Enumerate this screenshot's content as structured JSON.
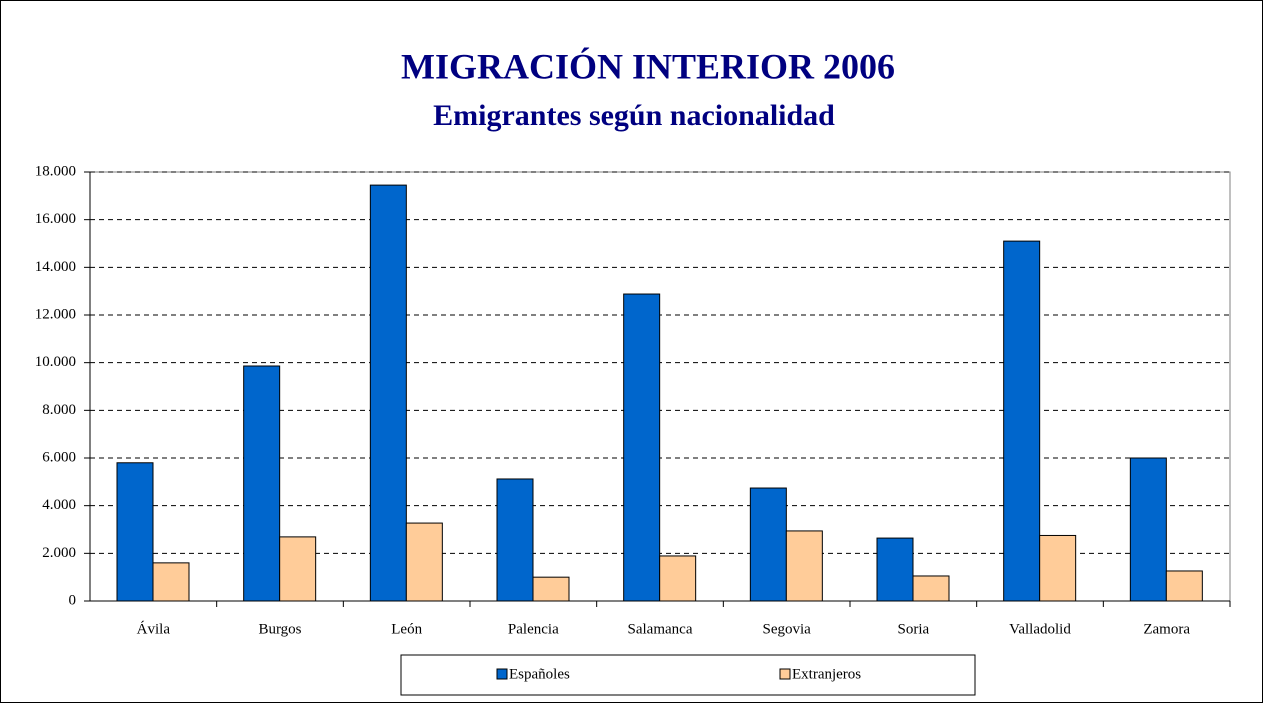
{
  "chart_data": {
    "type": "bar",
    "title": "MIGRACIÓN INTERIOR 2006",
    "subtitle": "Emigrantes según nacionalidad",
    "categories": [
      "Ávila",
      "Burgos",
      "León",
      "Palencia",
      "Salamanca",
      "Segovia",
      "Soria",
      "Valladolid",
      "Zamora"
    ],
    "series": [
      {
        "name": "Españoles",
        "color": "#0066cc",
        "values": [
          5800,
          9860,
          17450,
          5120,
          12880,
          4740,
          2640,
          15100,
          6000
        ]
      },
      {
        "name": "Extranjeros",
        "color": "#ffcc99",
        "values": [
          1600,
          2690,
          3270,
          1000,
          1890,
          2940,
          1050,
          2750,
          1260
        ]
      }
    ],
    "ylim": [
      0,
      18000
    ],
    "yticks": [
      0,
      {
        "value": 2000,
        "label": "2.000"
      },
      {
        "value": 4000,
        "label": "4.000"
      },
      {
        "value": 6000,
        "label": "6.000"
      },
      {
        "value": 8000,
        "label": "8.000"
      },
      {
        "value": 10000,
        "label": "10.000"
      },
      {
        "value": 12000,
        "label": "12.000"
      },
      {
        "value": 14000,
        "label": "14.000"
      },
      {
        "value": 16000,
        "label": "16.000"
      },
      {
        "value": 18000,
        "label": "18.000"
      }
    ],
    "grid": true,
    "legend": "bottom"
  }
}
